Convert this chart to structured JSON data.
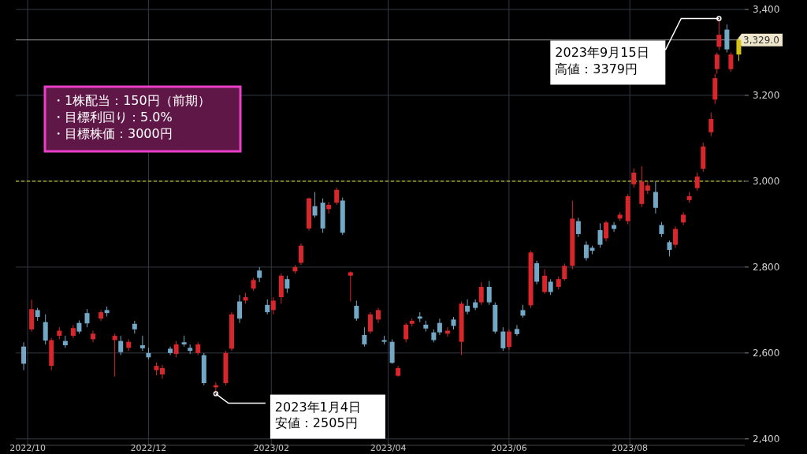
{
  "chart_data": {
    "type": "candlestick",
    "x": [
      "2022-09-29",
      "2022-10-03",
      "2022-10-06",
      "2022-10-10",
      "2022-10-13",
      "2022-10-17",
      "2022-10-20",
      "2022-10-24",
      "2022-10-27",
      "2022-10-31",
      "2022-11-03",
      "2022-11-07",
      "2022-11-10",
      "2022-11-14",
      "2022-11-17",
      "2022-11-21",
      "2022-11-24",
      "2022-11-28",
      "2022-12-01",
      "2022-12-05",
      "2022-12-08",
      "2022-12-12",
      "2022-12-15",
      "2022-12-19",
      "2022-12-22",
      "2022-12-26",
      "2022-12-29",
      "2023-01-04",
      "2023-01-09",
      "2023-01-12",
      "2023-01-16",
      "2023-01-19",
      "2023-01-23",
      "2023-01-26",
      "2023-01-30",
      "2023-02-02",
      "2023-02-06",
      "2023-02-09",
      "2023-02-13",
      "2023-02-16",
      "2023-02-20",
      "2023-02-23",
      "2023-02-27",
      "2023-03-02",
      "2023-03-06",
      "2023-03-09",
      "2023-03-13",
      "2023-03-16",
      "2023-03-20",
      "2023-03-23",
      "2023-03-27",
      "2023-03-30",
      "2023-04-03",
      "2023-04-06",
      "2023-04-10",
      "2023-04-13",
      "2023-04-17",
      "2023-04-20",
      "2023-04-24",
      "2023-04-27",
      "2023-05-01",
      "2023-05-04",
      "2023-05-08",
      "2023-05-11",
      "2023-05-15",
      "2023-05-18",
      "2023-05-22",
      "2023-05-25",
      "2023-05-29",
      "2023-06-01",
      "2023-06-05",
      "2023-06-08",
      "2023-06-12",
      "2023-06-15",
      "2023-06-19",
      "2023-06-22",
      "2023-06-26",
      "2023-06-29",
      "2023-07-03",
      "2023-07-06",
      "2023-07-10",
      "2023-07-13",
      "2023-07-17",
      "2023-07-20",
      "2023-07-24",
      "2023-07-27",
      "2023-07-31",
      "2023-08-03",
      "2023-08-07",
      "2023-08-10",
      "2023-08-14",
      "2023-08-17",
      "2023-08-21",
      "2023-08-24",
      "2023-08-28",
      "2023-08-31",
      "2023-09-04",
      "2023-09-07",
      "2023-09-11",
      "2023-09-13",
      "2023-09-14",
      "2023-09-15",
      "2023-09-19",
      "2023-09-21",
      "2023-09-25"
    ],
    "ohlc": [
      [
        2615,
        2625,
        2560,
        2575
      ],
      [
        2655,
        2724,
        2650,
        2702
      ],
      [
        2700,
        2705,
        2675,
        2684
      ],
      [
        2672,
        2690,
        2620,
        2629
      ],
      [
        2570,
        2635,
        2560,
        2630
      ],
      [
        2640,
        2660,
        2632,
        2652
      ],
      [
        2628,
        2640,
        2612,
        2618
      ],
      [
        2640,
        2665,
        2635,
        2658
      ],
      [
        2670,
        2676,
        2645,
        2650
      ],
      [
        2693,
        2702,
        2660,
        2669
      ],
      [
        2632,
        2652,
        2625,
        2645
      ],
      [
        2680,
        2700,
        2675,
        2695
      ],
      [
        2700,
        2708,
        2685,
        2693
      ],
      [
        2630,
        2645,
        2545,
        2640
      ],
      [
        2628,
        2640,
        2595,
        2602
      ],
      [
        2612,
        2632,
        2605,
        2626
      ],
      [
        2668,
        2675,
        2645,
        2655
      ],
      [
        2618,
        2640,
        2605,
        2611
      ],
      [
        2600,
        2612,
        2585,
        2590
      ],
      [
        2560,
        2578,
        2548,
        2570
      ],
      [
        2550,
        2572,
        2540,
        2565
      ],
      [
        2610,
        2615,
        2595,
        2600
      ],
      [
        2598,
        2628,
        2590,
        2620
      ],
      [
        2625,
        2640,
        2615,
        2620
      ],
      [
        2612,
        2620,
        2598,
        2605
      ],
      [
        2600,
        2625,
        2595,
        2620
      ],
      [
        2595,
        2600,
        2525,
        2530
      ],
      [
        2520,
        2532,
        2505,
        2525
      ],
      [
        2530,
        2605,
        2525,
        2600
      ],
      [
        2610,
        2695,
        2605,
        2690
      ],
      [
        2720,
        2735,
        2670,
        2680
      ],
      [
        2722,
        2740,
        2715,
        2730
      ],
      [
        2750,
        2775,
        2745,
        2770
      ],
      [
        2792,
        2800,
        2765,
        2775
      ],
      [
        2712,
        2725,
        2690,
        2695
      ],
      [
        2700,
        2730,
        2690,
        2722
      ],
      [
        2730,
        2785,
        2715,
        2780
      ],
      [
        2772,
        2780,
        2740,
        2750
      ],
      [
        2790,
        2805,
        2785,
        2800
      ],
      [
        2810,
        2855,
        2805,
        2850
      ],
      [
        2890,
        2962,
        2885,
        2960
      ],
      [
        2942,
        2975,
        2915,
        2920
      ],
      [
        2950,
        2960,
        2880,
        2890
      ],
      [
        2935,
        2952,
        2925,
        2945
      ],
      [
        2950,
        2985,
        2945,
        2980
      ],
      [
        2955,
        2962,
        2875,
        2880
      ],
      [
        2780,
        2790,
        2720,
        2788
      ],
      [
        2710,
        2722,
        2675,
        2680
      ],
      [
        2642,
        2660,
        2615,
        2620
      ],
      [
        2650,
        2695,
        2645,
        2690
      ],
      [
        2678,
        2705,
        2670,
        2700
      ],
      [
        2630,
        2640,
        2620,
        2626
      ],
      [
        2626,
        2632,
        2575,
        2577
      ],
      [
        2547,
        2570,
        2545,
        2565
      ],
      [
        2632,
        2670,
        2625,
        2666
      ],
      [
        2668,
        2680,
        2662,
        2675
      ],
      [
        2685,
        2695,
        2672,
        2680
      ],
      [
        2666,
        2675,
        2650,
        2657
      ],
      [
        2648,
        2655,
        2625,
        2630
      ],
      [
        2670,
        2680,
        2642,
        2648
      ],
      [
        2645,
        2660,
        2638,
        2652
      ],
      [
        2678,
        2684,
        2655,
        2663
      ],
      [
        2626,
        2720,
        2595,
        2715
      ],
      [
        2710,
        2725,
        2690,
        2696
      ],
      [
        2718,
        2725,
        2700,
        2705
      ],
      [
        2718,
        2765,
        2712,
        2754
      ],
      [
        2754,
        2768,
        2712,
        2718
      ],
      [
        2712,
        2718,
        2645,
        2650
      ],
      [
        2650,
        2660,
        2605,
        2611
      ],
      [
        2614,
        2655,
        2608,
        2650
      ],
      [
        2656,
        2665,
        2640,
        2644
      ],
      [
        2700,
        2712,
        2682,
        2687
      ],
      [
        2711,
        2838,
        2705,
        2834
      ],
      [
        2809,
        2815,
        2760,
        2766
      ],
      [
        2742,
        2795,
        2738,
        2780
      ],
      [
        2766,
        2772,
        2735,
        2742
      ],
      [
        2754,
        2778,
        2748,
        2772
      ],
      [
        2772,
        2808,
        2768,
        2803
      ],
      [
        2803,
        2955,
        2795,
        2913
      ],
      [
        2907,
        2915,
        2870,
        2877
      ],
      [
        2852,
        2860,
        2815,
        2821
      ],
      [
        2845,
        2850,
        2830,
        2838
      ],
      [
        2886,
        2902,
        2845,
        2852
      ],
      [
        2867,
        2908,
        2860,
        2904
      ],
      [
        2898,
        2905,
        2882,
        2889
      ],
      [
        2913,
        2928,
        2908,
        2922
      ],
      [
        2907,
        2970,
        2900,
        2965
      ],
      [
        2993,
        3030,
        2985,
        3020
      ],
      [
        2947,
        3035,
        2940,
        2999
      ],
      [
        2978,
        3000,
        2970,
        2990
      ],
      [
        2975,
        3000,
        2925,
        2938
      ],
      [
        2898,
        2905,
        2870,
        2877
      ],
      [
        2858,
        2862,
        2825,
        2840
      ],
      [
        2852,
        2895,
        2845,
        2889
      ],
      [
        2904,
        2928,
        2898,
        2922
      ],
      [
        2956,
        2975,
        2950,
        2965
      ],
      [
        2984,
        3020,
        2978,
        3011
      ],
      [
        3029,
        3090,
        3022,
        3081
      ],
      [
        3114,
        3160,
        3105,
        3145
      ],
      [
        3190,
        3250,
        3180,
        3240
      ],
      [
        3261,
        3300,
        3250,
        3295
      ],
      [
        3313,
        3379,
        3305,
        3341
      ],
      [
        3353,
        3365,
        3300,
        3307
      ],
      [
        3261,
        3300,
        3255,
        3295
      ],
      [
        3295,
        3335,
        3280,
        3329
      ]
    ],
    "colors": [
      "#72a8c6",
      "#d7262c",
      "#72a8c6",
      "#72a8c6",
      "#d7262c",
      "#d7262c",
      "#72a8c6",
      "#d7262c",
      "#72a8c6",
      "#72a8c6",
      "#d7262c",
      "#d7262c",
      "#72a8c6",
      "#d7262c",
      "#72a8c6",
      "#d7262c",
      "#72a8c6",
      "#72a8c6",
      "#72a8c6",
      "#d7262c",
      "#d7262c",
      "#72a8c6",
      "#d7262c",
      "#72a8c6",
      "#72a8c6",
      "#d7262c",
      "#72a8c6",
      "#d7262c",
      "#d7262c",
      "#d7262c",
      "#72a8c6",
      "#d7262c",
      "#d7262c",
      "#72a8c6",
      "#72a8c6",
      "#d7262c",
      "#d7262c",
      "#72a8c6",
      "#d7262c",
      "#d7262c",
      "#d7262c",
      "#72a8c6",
      "#72a8c6",
      "#d7262c",
      "#d7262c",
      "#72a8c6",
      "#d7262c",
      "#72a8c6",
      "#72a8c6",
      "#d7262c",
      "#d7262c",
      "#72a8c6",
      "#72a8c6",
      "#d7262c",
      "#d7262c",
      "#d7262c",
      "#72a8c6",
      "#72a8c6",
      "#72a8c6",
      "#72a8c6",
      "#d7262c",
      "#72a8c6",
      "#d7262c",
      "#72a8c6",
      "#72a8c6",
      "#d7262c",
      "#72a8c6",
      "#72a8c6",
      "#72a8c6",
      "#d7262c",
      "#72a8c6",
      "#72a8c6",
      "#d7262c",
      "#72a8c6",
      "#d7262c",
      "#72a8c6",
      "#d7262c",
      "#d7262c",
      "#d7262c",
      "#72a8c6",
      "#72a8c6",
      "#72a8c6",
      "#72a8c6",
      "#d7262c",
      "#72a8c6",
      "#d7262c",
      "#d7262c",
      "#d7262c",
      "#d7262c",
      "#d7262c",
      "#72a8c6",
      "#72a8c6",
      "#72a8c6",
      "#d7262c",
      "#d7262c",
      "#d7262c",
      "#d7262c",
      "#d7262c",
      "#d7262c",
      "#d7262c",
      "#d7262c",
      "#d7262c",
      "#72a8c6",
      "#d7262c",
      "#d4c21a"
    ],
    "xlim": [
      "2022-09-25",
      "2023-09-28"
    ],
    "xticks": [
      {
        "value": "2022-10-01",
        "label": "2022/10"
      },
      {
        "value": "2022-12-01",
        "label": "2022/12"
      },
      {
        "value": "2023-02-01",
        "label": "2023/02"
      },
      {
        "value": "2023-04-01",
        "label": "2023/04"
      },
      {
        "value": "2023-06-01",
        "label": "2023/06"
      },
      {
        "value": "2023-08-01",
        "label": "2023/08"
      }
    ],
    "ylim": [
      2385,
      3422
    ],
    "yticks": [
      {
        "value": 2400,
        "label": "2,400"
      },
      {
        "value": 2600,
        "label": "2,600"
      },
      {
        "value": 2800,
        "label": "2,800"
      },
      {
        "value": 3000,
        "label": "3,000"
      },
      {
        "value": 3200,
        "label": "3,200"
      },
      {
        "value": 3400,
        "label": "3,400"
      }
    ],
    "grid": true,
    "ref_lines": [
      {
        "axis": "y",
        "value": 3000,
        "color": "#e6e022",
        "line_style": "dashed"
      },
      {
        "axis": "y",
        "value": 3329,
        "label": "3,329.0",
        "color": "#9a9a9a",
        "line_style": "solid"
      }
    ],
    "annotations": [
      "・1株配当：150円（前期）",
      "・目標利回り：5.0%",
      "・目標株価：3000円",
      {
        "text": "2023年9月15日高値：3379円",
        "x": "2023-09-15",
        "y": 3379
      },
      {
        "text": "2023年1月4日安値：2505円",
        "x": "2023-01-04",
        "y": 2505
      }
    ]
  }
}
